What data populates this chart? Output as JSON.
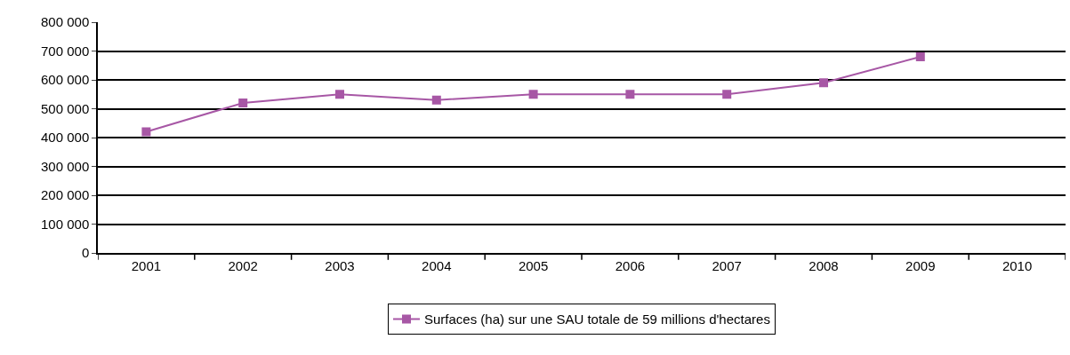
{
  "chart_data": {
    "type": "line",
    "categories": [
      "2001",
      "2002",
      "2003",
      "2004",
      "2005",
      "2006",
      "2007",
      "2008",
      "2009",
      "2010"
    ],
    "series": [
      {
        "name": "Surfaces (ha) sur une SAU totale de 59 millions d'hectares",
        "color": "#a757a5",
        "values": [
          420000,
          520000,
          550000,
          530000,
          550000,
          550000,
          550000,
          590000,
          680000,
          null
        ]
      }
    ],
    "ylim": [
      0,
      800000
    ],
    "yticks": [
      {
        "value": 0,
        "label": "0"
      },
      {
        "value": 100000,
        "label": "100 000"
      },
      {
        "value": 200000,
        "label": "200 000"
      },
      {
        "value": 300000,
        "label": "300 000"
      },
      {
        "value": 400000,
        "label": "400 000"
      },
      {
        "value": 500000,
        "label": "500 000"
      },
      {
        "value": 600000,
        "label": "600 000"
      },
      {
        "value": 700000,
        "label": "700 000"
      },
      {
        "value": 800000,
        "label": "800 000"
      }
    ],
    "grid": "y",
    "legend": "bottom",
    "marker": "square",
    "line_style": "solid"
  }
}
